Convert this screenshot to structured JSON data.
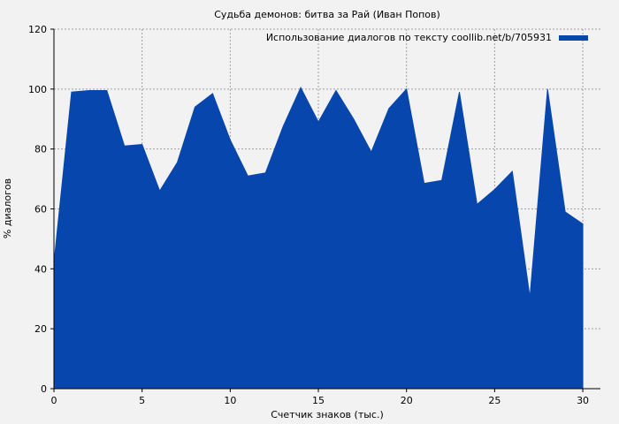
{
  "chart_data": {
    "type": "area",
    "title": "Судьба демонов: битва за Рай (Иван Попов)",
    "xlabel": "Счетчик знаков (тыс.)",
    "ylabel": "% диалогов",
    "xlim": [
      0,
      31
    ],
    "ylim": [
      0,
      120
    ],
    "xticks": [
      0,
      5,
      10,
      15,
      20,
      25,
      30
    ],
    "yticks": [
      0,
      20,
      40,
      60,
      80,
      100,
      120
    ],
    "grid": true,
    "legend_position": "top-right",
    "series": [
      {
        "name": "Использование диалогов по тексту coollib.net/b/705931",
        "color": "#0746ad",
        "x": [
          0,
          1,
          2,
          3,
          4,
          5,
          6,
          7,
          8,
          9,
          10,
          11,
          12,
          13,
          14,
          15,
          16,
          17,
          18,
          19,
          20,
          21,
          22,
          23,
          24,
          25,
          26,
          27,
          28,
          29,
          30
        ],
        "values": [
          42,
          99,
          99.5,
          99.5,
          81,
          81.5,
          66,
          75.5,
          94,
          98.5,
          83,
          71,
          72,
          87.5,
          100.5,
          89,
          99.5,
          90,
          79,
          93.5,
          100,
          68.5,
          69.5,
          99,
          61.5,
          66.5,
          72.5,
          30.5,
          100,
          59,
          55
        ]
      }
    ]
  }
}
